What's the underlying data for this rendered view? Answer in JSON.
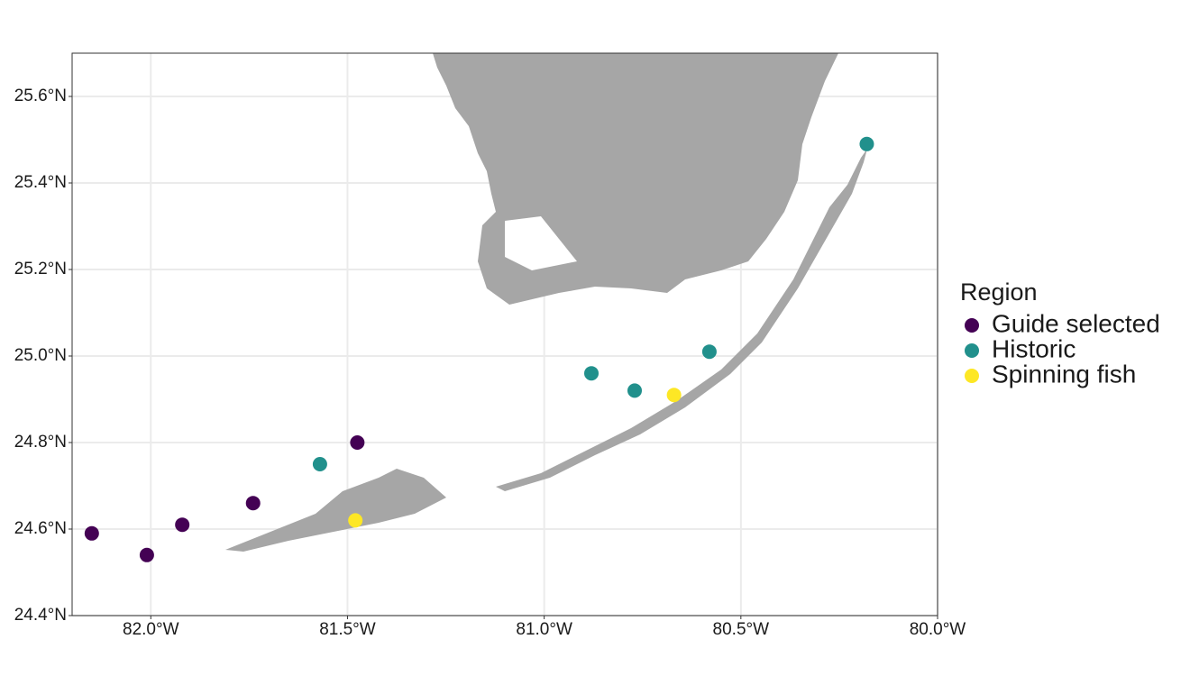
{
  "chart_data": {
    "type": "scatter",
    "xlim": [
      -82.2,
      -80.0
    ],
    "ylim": [
      24.4,
      25.7
    ],
    "xticks": [
      {
        "value": -82.0,
        "label": "82.0°W"
      },
      {
        "value": -81.5,
        "label": "81.5°W"
      },
      {
        "value": -81.0,
        "label": "81.0°W"
      },
      {
        "value": -80.5,
        "label": "80.5°W"
      },
      {
        "value": -80.0,
        "label": "80.0°W"
      }
    ],
    "yticks": [
      {
        "value": 24.4,
        "label": "24.4°N"
      },
      {
        "value": 24.6,
        "label": "24.6°N"
      },
      {
        "value": 24.8,
        "label": "24.8°N"
      },
      {
        "value": 25.0,
        "label": "25.0°N"
      },
      {
        "value": 25.2,
        "label": "25.2°N"
      },
      {
        "value": 25.4,
        "label": "25.4°N"
      },
      {
        "value": 25.6,
        "label": "25.6°N"
      }
    ],
    "grid": true,
    "legend_title": "Region",
    "series": [
      {
        "name": "Guide selected",
        "color": "#440154",
        "x": [
          -82.15,
          -82.01,
          -81.92,
          -81.74,
          -81.475
        ],
        "values": [
          24.59,
          24.54,
          24.61,
          24.66,
          24.8
        ]
      },
      {
        "name": "Historic",
        "color": "#21908C",
        "x": [
          -81.57,
          -80.88,
          -80.77,
          -80.58,
          -80.18
        ],
        "values": [
          24.75,
          24.96,
          24.92,
          25.01,
          25.49
        ]
      },
      {
        "name": "Spinning fish",
        "color": "#FDE725",
        "x": [
          -81.48,
          -80.67
        ],
        "values": [
          24.62,
          24.91
        ]
      }
    ]
  }
}
